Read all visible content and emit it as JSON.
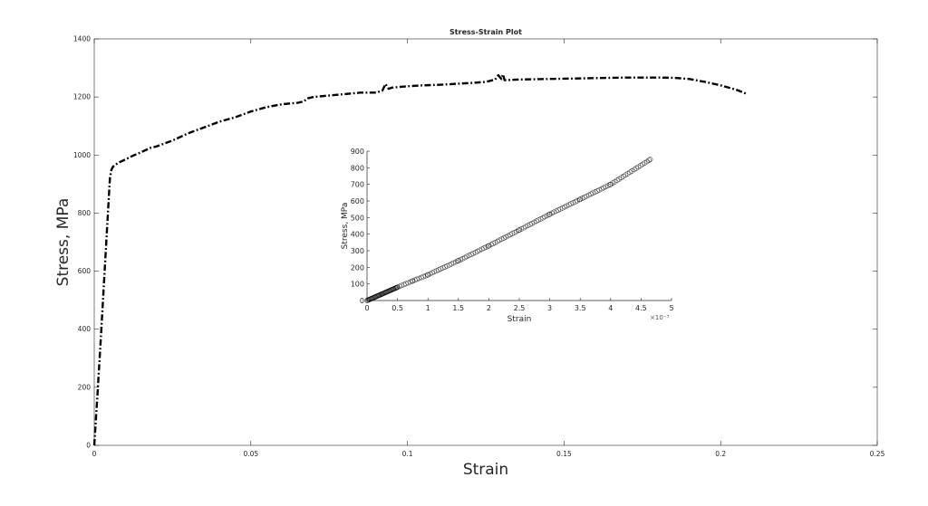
{
  "chart_data": [
    {
      "type": "line",
      "title": "Stress-Strain Plot",
      "xlabel": "Strain",
      "ylabel": "Stress, MPa",
      "xlim": [
        0,
        0.25
      ],
      "ylim": [
        0,
        1400
      ],
      "x_ticks": [
        0,
        0.05,
        0.1,
        0.15,
        0.2,
        0.25
      ],
      "x_tick_labels": [
        "0",
        "0.05",
        "0.1",
        "0.15",
        "0.2",
        "0.25"
      ],
      "y_ticks": [
        0,
        200,
        400,
        600,
        800,
        1000,
        1200,
        1400
      ],
      "y_tick_labels": [
        "0",
        "200",
        "400",
        "600",
        "800",
        "1000",
        "1200",
        "1400"
      ],
      "grid": false,
      "line_style": "dash-dot",
      "color": "#000000",
      "series": [
        {
          "x": [
            0,
            0.001,
            0.002,
            0.003,
            0.004,
            0.005,
            0.0055,
            0.006,
            0.007,
            0.008,
            0.01,
            0.012,
            0.015,
            0.018,
            0.02,
            0.025,
            0.03,
            0.035,
            0.04,
            0.045,
            0.05,
            0.055,
            0.06,
            0.065,
            0.067,
            0.068,
            0.07,
            0.075,
            0.08,
            0.085,
            0.09,
            0.092,
            0.093,
            0.094,
            0.095,
            0.1,
            0.105,
            0.11,
            0.115,
            0.12,
            0.125,
            0.128,
            0.129,
            0.13,
            0.1305,
            0.131,
            0.132,
            0.135,
            0.14,
            0.145,
            0.15,
            0.155,
            0.16,
            0.165,
            0.17,
            0.175,
            0.18,
            0.185,
            0.19,
            0.195,
            0.2,
            0.205,
            0.208
          ],
          "y": [
            0,
            170,
            350,
            540,
            730,
            920,
            950,
            960,
            968,
            975,
            985,
            996,
            1010,
            1025,
            1030,
            1050,
            1075,
            1095,
            1115,
            1130,
            1150,
            1165,
            1175,
            1180,
            1185,
            1195,
            1200,
            1205,
            1210,
            1215,
            1215,
            1222,
            1245,
            1228,
            1232,
            1237,
            1240,
            1242,
            1245,
            1248,
            1252,
            1260,
            1275,
            1262,
            1278,
            1258,
            1258,
            1260,
            1261,
            1262,
            1263,
            1264,
            1265,
            1266,
            1267,
            1267,
            1267,
            1266,
            1262,
            1252,
            1240,
            1225,
            1212
          ]
        }
      ]
    },
    {
      "type": "scatter",
      "inset": true,
      "xlabel": "Strain",
      "ylabel": "Stress, MPa",
      "x_multiplier_label": "×10⁻³",
      "xlim": [
        0,
        5
      ],
      "ylim": [
        0,
        900
      ],
      "x_ticks": [
        0,
        0.5,
        1,
        1.5,
        2,
        2.5,
        3,
        3.5,
        4,
        4.5,
        5
      ],
      "x_tick_labels": [
        "0",
        "0.5",
        "1",
        "1.5",
        "2",
        "2.5",
        "3",
        "3.5",
        "4",
        "4.5",
        "5"
      ],
      "y_ticks": [
        0,
        100,
        200,
        300,
        400,
        500,
        600,
        700,
        800,
        900
      ],
      "y_tick_labels": [
        "0",
        "100",
        "200",
        "300",
        "400",
        "500",
        "600",
        "700",
        "800",
        "900"
      ],
      "grid": false,
      "marker": "open-circle",
      "color": "#000000",
      "series": [
        {
          "x": [
            0,
            0.25,
            0.5,
            0.75,
            1.0,
            1.5,
            2.0,
            2.5,
            3.0,
            3.5,
            4.0,
            4.65
          ],
          "y": [
            0,
            40,
            80,
            118,
            155,
            240,
            330,
            425,
            520,
            610,
            700,
            850
          ]
        }
      ]
    }
  ]
}
